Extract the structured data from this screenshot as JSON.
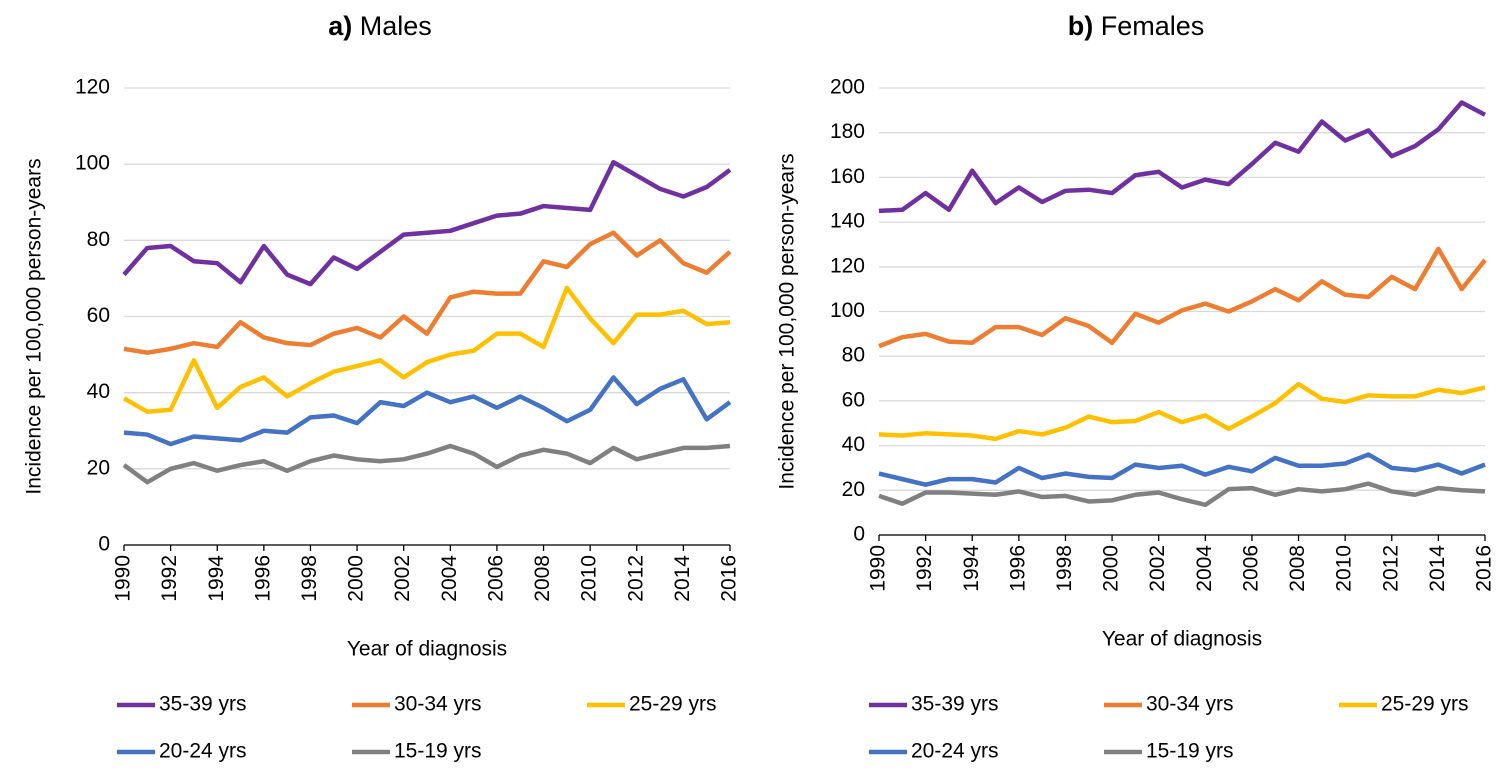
{
  "chart_data": [
    {
      "type": "line",
      "panel": "a)",
      "title": "Males",
      "ylabel": "Incidence per 100,000 person-years",
      "xlabel": "Year of diagnosis",
      "x": [
        1990,
        1991,
        1992,
        1993,
        1994,
        1995,
        1996,
        1997,
        1998,
        1999,
        2000,
        2001,
        2002,
        2003,
        2004,
        2005,
        2006,
        2007,
        2008,
        2009,
        2010,
        2011,
        2012,
        2013,
        2014,
        2015,
        2016
      ],
      "xlim": [
        1990,
        2016
      ],
      "xticks": [
        1990,
        1992,
        1994,
        1996,
        1998,
        2000,
        2002,
        2004,
        2006,
        2008,
        2010,
        2012,
        2014,
        2016
      ],
      "ylim": [
        0,
        120
      ],
      "yticks": [
        0,
        20,
        40,
        60,
        80,
        100,
        120
      ],
      "grid": true,
      "series": [
        {
          "name": "35-39 yrs",
          "color": "#7030a0",
          "values": [
            71,
            78,
            78.5,
            74.5,
            74,
            69,
            78.5,
            71,
            68.5,
            75.5,
            72.5,
            77,
            81.5,
            82,
            82.5,
            84.5,
            86.5,
            87,
            89,
            88.5,
            88,
            100.5,
            97,
            93.5,
            91.5,
            94,
            98.5
          ]
        },
        {
          "name": "30-34 yrs",
          "color": "#ed7d31",
          "values": [
            51.5,
            50.5,
            51.5,
            53,
            52,
            58.5,
            54.5,
            53,
            52.5,
            55.5,
            57,
            54.5,
            60,
            55.5,
            65,
            66.5,
            66,
            66,
            74.5,
            73,
            79,
            82,
            76,
            80,
            74,
            71.5,
            77
          ]
        },
        {
          "name": "25-29 yrs",
          "color": "#ffc000",
          "values": [
            38.5,
            35,
            35.5,
            48.5,
            36,
            41.5,
            44,
            39,
            42.5,
            45.5,
            47,
            48.5,
            44,
            48,
            50,
            51,
            55.5,
            55.5,
            52,
            67.5,
            59.5,
            53,
            60.5,
            60.5,
            61.5,
            58,
            58.5
          ]
        },
        {
          "name": "20-24 yrs",
          "color": "#4472c4",
          "values": [
            29.5,
            29,
            26.5,
            28.5,
            28,
            27.5,
            30,
            29.5,
            33.5,
            34,
            32,
            37.5,
            36.5,
            40,
            37.5,
            39,
            36,
            39,
            36,
            32.5,
            35.5,
            44,
            37,
            41,
            43.5,
            33,
            37.5
          ]
        },
        {
          "name": "15-19 yrs",
          "color": "#808080",
          "values": [
            21,
            16.5,
            20,
            21.5,
            19.5,
            21,
            22,
            19.5,
            22,
            23.5,
            22.5,
            22,
            22.5,
            24,
            26,
            24,
            20.5,
            23.5,
            25,
            24,
            21.5,
            25.5,
            22.5,
            24,
            25.5,
            25.5,
            26
          ]
        }
      ]
    },
    {
      "type": "line",
      "panel": "b)",
      "title": "Females",
      "ylabel": "Incidence per 100,000 person-years",
      "xlabel": "Year of diagnosis",
      "x": [
        1990,
        1991,
        1992,
        1993,
        1994,
        1995,
        1996,
        1997,
        1998,
        1999,
        2000,
        2001,
        2002,
        2003,
        2004,
        2005,
        2006,
        2007,
        2008,
        2009,
        2010,
        2011,
        2012,
        2013,
        2014,
        2015,
        2016
      ],
      "xlim": [
        1990,
        2016
      ],
      "xticks": [
        1990,
        1992,
        1994,
        1996,
        1998,
        2000,
        2002,
        2004,
        2006,
        2008,
        2010,
        2012,
        2014,
        2016
      ],
      "ylim": [
        0,
        200
      ],
      "yticks": [
        0,
        20,
        40,
        60,
        80,
        100,
        120,
        140,
        160,
        180,
        200
      ],
      "grid": true,
      "series": [
        {
          "name": "35-39 yrs",
          "color": "#7030a0",
          "values": [
            145,
            145.5,
            153,
            145.5,
            163,
            148.5,
            155.5,
            149,
            154,
            154.5,
            153,
            161,
            162.5,
            155.5,
            159,
            157,
            166,
            175.5,
            171.5,
            185,
            176.5,
            181,
            169.5,
            174,
            181.5,
            193.5,
            188
          ]
        },
        {
          "name": "30-34 yrs",
          "color": "#ed7d31",
          "values": [
            84.5,
            88.5,
            90,
            86.5,
            86,
            93,
            93,
            89.5,
            97,
            93.5,
            86,
            99,
            95,
            100.5,
            103.5,
            100,
            104.5,
            110,
            105,
            113.5,
            107.5,
            106.5,
            115.5,
            110,
            128,
            110,
            123
          ]
        },
        {
          "name": "25-29 yrs",
          "color": "#ffc000",
          "values": [
            45,
            44.5,
            45.5,
            45,
            44.5,
            43,
            46.5,
            45,
            48,
            53,
            50.5,
            51,
            55,
            50.5,
            53.5,
            47.5,
            53,
            59,
            67.5,
            61,
            59.5,
            62.5,
            62,
            62,
            65,
            63.5,
            66
          ]
        },
        {
          "name": "20-24 yrs",
          "color": "#4472c4",
          "values": [
            27.5,
            25,
            22.5,
            25,
            25,
            23.5,
            30,
            25.5,
            27.5,
            26,
            25.5,
            31.5,
            30,
            31,
            27,
            30.5,
            28.5,
            34.5,
            31,
            31,
            32,
            36,
            30,
            29,
            31.5,
            27.5,
            31.5
          ]
        },
        {
          "name": "15-19 yrs",
          "color": "#808080",
          "values": [
            17.5,
            14,
            19,
            19,
            18.5,
            18,
            19.5,
            17,
            17.5,
            15,
            15.5,
            18,
            19,
            16,
            13.5,
            20.5,
            21,
            18,
            20.5,
            19.5,
            20.5,
            23,
            19.5,
            18,
            21,
            20,
            19.5
          ]
        }
      ]
    }
  ]
}
